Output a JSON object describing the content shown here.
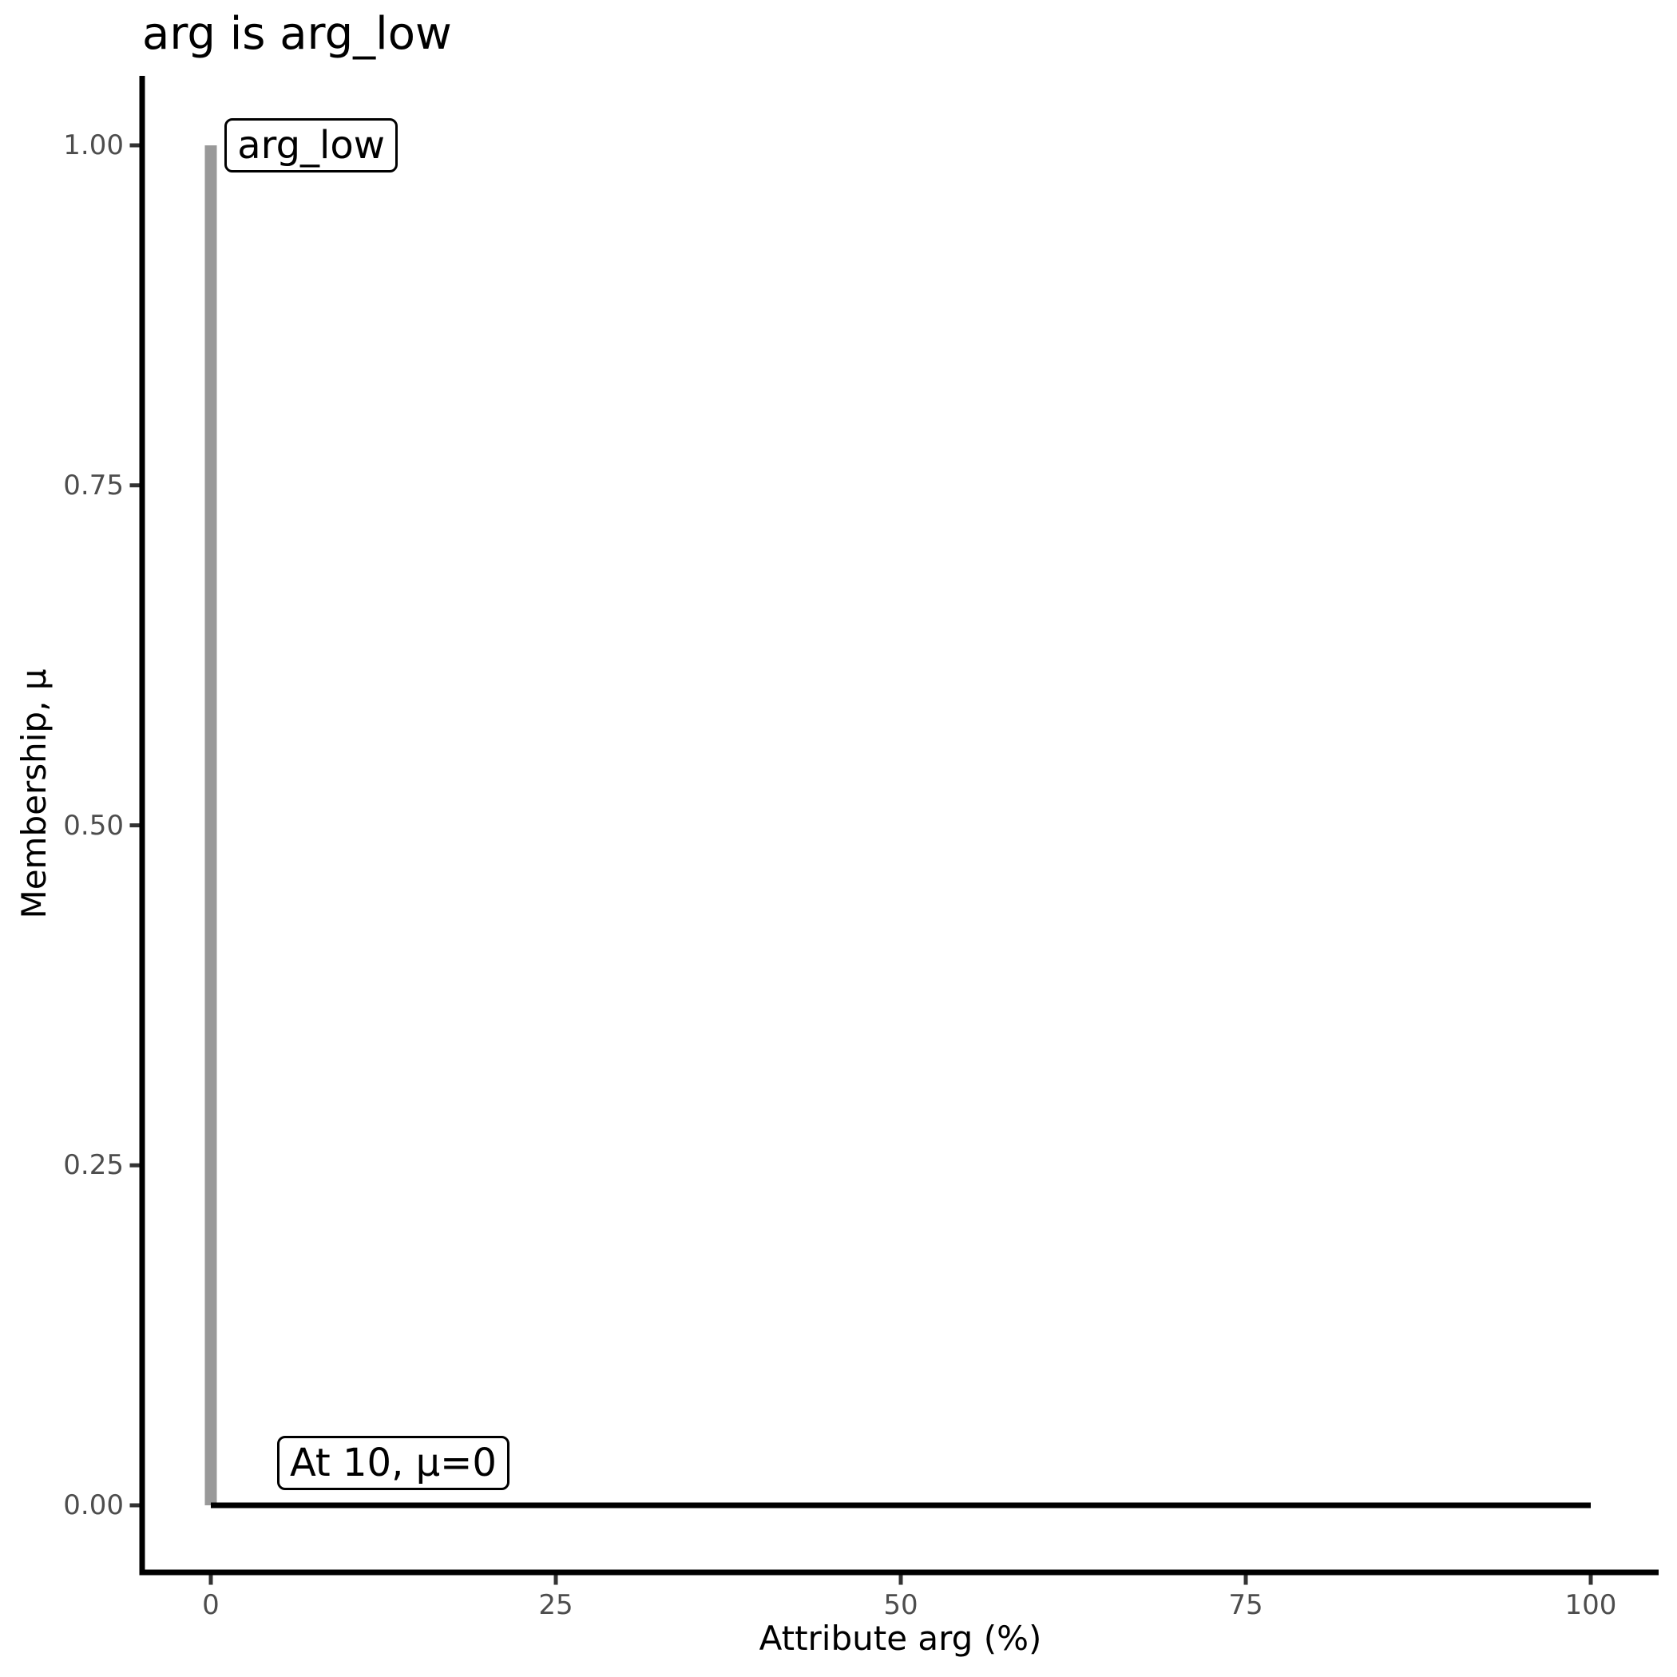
{
  "page": {
    "background": "#ffffff"
  },
  "chart_data": {
    "type": "line",
    "title": "arg is arg_low",
    "xlabel": "Attribute arg (%)",
    "ylabel": "Membership, μ",
    "xlim": [
      0,
      100
    ],
    "ylim": [
      0,
      1
    ],
    "grid": false,
    "legend": false,
    "x_ticks": [
      {
        "value": 0,
        "label": "0"
      },
      {
        "value": 25,
        "label": "25"
      },
      {
        "value": 50,
        "label": "50"
      },
      {
        "value": 75,
        "label": "75"
      },
      {
        "value": 100,
        "label": "100"
      }
    ],
    "y_ticks": [
      {
        "value": 0,
        "label": "0.00"
      },
      {
        "value": 0.25,
        "label": "0.25"
      },
      {
        "value": 0.5,
        "label": "0.50"
      },
      {
        "value": 0.75,
        "label": "0.75"
      },
      {
        "value": 1,
        "label": "1.00"
      }
    ],
    "series": [
      {
        "name": "arg_low-membership-spike",
        "color": "#999999",
        "width": 15,
        "points": [
          [
            0,
            0
          ],
          [
            0,
            1
          ]
        ]
      },
      {
        "name": "zero-membership-baseline",
        "color": "#000000",
        "width": 7,
        "points": [
          [
            0,
            0
          ],
          [
            100,
            0
          ]
        ]
      }
    ],
    "annotations": [
      {
        "text": "arg_low",
        "x": 1.0,
        "y": 1.0
      },
      {
        "text": "At 10, μ=0",
        "x": 4.8,
        "y": 0.031
      }
    ],
    "colors": {
      "axis_line": "#000000",
      "tick_mark": "#333333",
      "tick_label": "#4d4d4d",
      "axis_title": "#000000",
      "title": "#000000",
      "annotation_border": "#000000",
      "annotation_bg": "#ffffff",
      "annotation_text": "#000000"
    }
  }
}
